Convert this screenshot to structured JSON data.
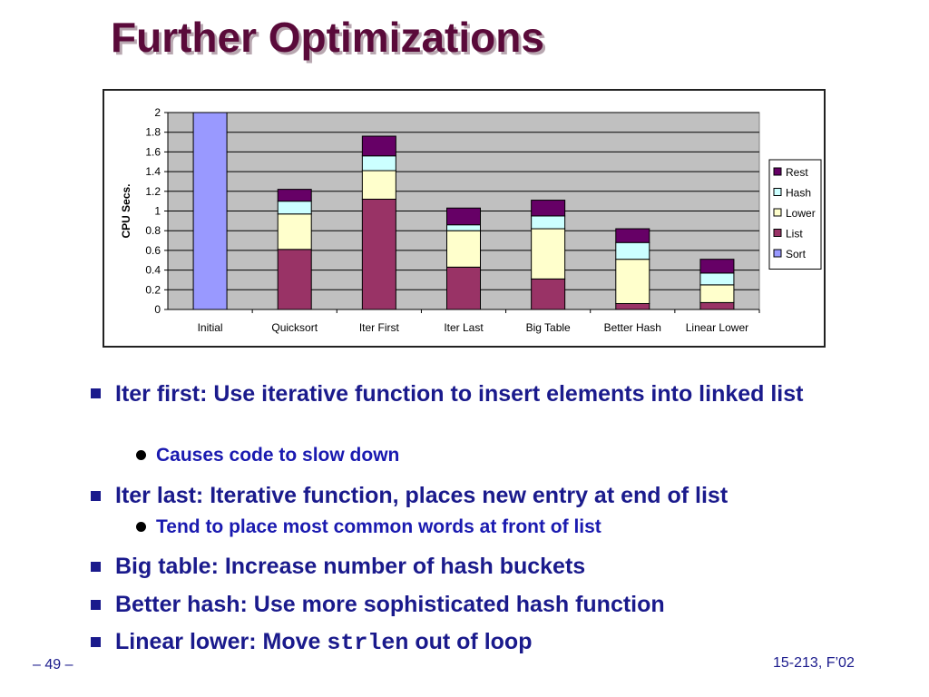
{
  "slide": {
    "title": "Further Optimizations",
    "footer_left": "– 49 –",
    "footer_right": "15-213, F’02"
  },
  "bullets": [
    {
      "text": "Iter first: Use iterative function to insert elements into linked list",
      "sub": [
        "Causes code to slow down"
      ]
    },
    {
      "text": "Iter last: Iterative function, places new entry at end of list",
      "sub": [
        "Tend to place most common words at front of list"
      ]
    },
    {
      "text": "Big table: Increase number of hash buckets",
      "sub": []
    },
    {
      "text": "Better hash: Use more sophisticated hash function",
      "sub": []
    },
    {
      "text_before": "Linear lower: Move ",
      "code": "strlen",
      "text_after": " out of loop",
      "sub": []
    }
  ],
  "chart_data": {
    "type": "bar",
    "stacked": true,
    "ylabel": "CPU Secs.",
    "xlabel": "",
    "ylim": [
      0,
      2
    ],
    "yticks": [
      "0",
      "0.2",
      "0.4",
      "0.6",
      "0.8",
      "1",
      "1.2",
      "1.4",
      "1.6",
      "1.8",
      "2"
    ],
    "grid": true,
    "legend_position": "right",
    "categories": [
      "Initial",
      "Quicksort",
      "Iter First",
      "Iter Last",
      "Big Table",
      "Better Hash",
      "Linear Lower"
    ],
    "series": [
      {
        "name": "Sort",
        "color": "#9999ff",
        "values": [
          2.0,
          0,
          0,
          0,
          0,
          0,
          0
        ]
      },
      {
        "name": "List",
        "color": "#993366",
        "values": [
          0,
          0.61,
          1.12,
          0.43,
          0.31,
          0.06,
          0.07
        ]
      },
      {
        "name": "Lower",
        "color": "#ffffcc",
        "values": [
          0,
          0.36,
          0.29,
          0.37,
          0.51,
          0.45,
          0.18
        ]
      },
      {
        "name": "Hash",
        "color": "#ccffff",
        "values": [
          0,
          0.13,
          0.15,
          0.06,
          0.13,
          0.17,
          0.12
        ]
      },
      {
        "name": "Rest",
        "color": "#660066",
        "values": [
          0,
          0.12,
          0.2,
          0.17,
          0.16,
          0.14,
          0.14
        ]
      }
    ]
  }
}
